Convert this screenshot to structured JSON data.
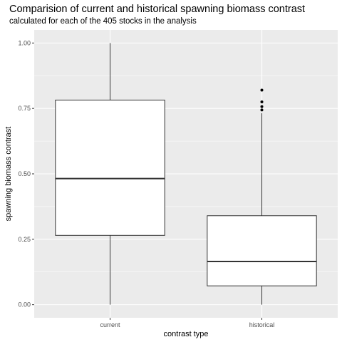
{
  "chart_data": {
    "type": "boxplot",
    "title": "Comparision of current and historical spawning biomass contrast",
    "subtitle": "calculated for each of the 405 stocks in the analysis",
    "xlabel": "contrast type",
    "ylabel": "spawning biomass contrast",
    "ylim": [
      -0.05,
      1.05
    ],
    "yticks": [
      0.0,
      0.25,
      0.5,
      0.75,
      1.0
    ],
    "ytick_labels": [
      "0.00",
      "0.25",
      "0.50",
      "0.75",
      "1.00"
    ],
    "categories": [
      "current",
      "historical"
    ],
    "boxes": [
      {
        "category": "current",
        "whisker_low": 0.0,
        "q1": 0.265,
        "median": 0.482,
        "q3": 0.782,
        "whisker_high": 1.0,
        "outliers": []
      },
      {
        "category": "historical",
        "whisker_low": 0.0,
        "q1": 0.072,
        "median": 0.165,
        "q3": 0.34,
        "whisker_high": 0.732,
        "outliers": [
          0.744,
          0.757,
          0.775,
          0.82
        ]
      }
    ],
    "grid": true,
    "legend": "none",
    "colors": {
      "panel": "#ebebeb",
      "grid_major": "#ffffff",
      "box_fill": "#ffffff",
      "box_stroke": "#333333",
      "outlier": "#000000"
    }
  }
}
